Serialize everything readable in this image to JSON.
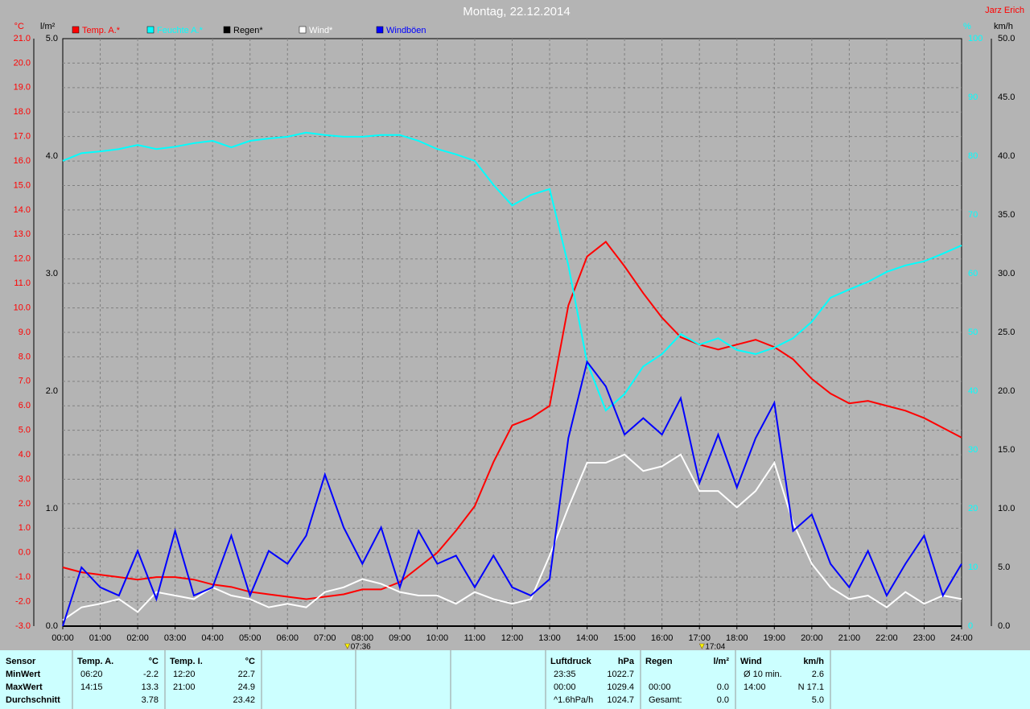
{
  "chart_data": {
    "type": "line",
    "title": "Montag, 22.12.2014",
    "author": "Jarz Erich",
    "units": {
      "y": "°C",
      "y3": "l/m²",
      "y2": "%",
      "y4": "km/h"
    },
    "x": [
      0,
      0.5,
      1,
      1.5,
      2,
      2.5,
      3,
      3.5,
      4,
      4.5,
      5,
      5.5,
      6,
      6.5,
      7,
      7.5,
      8,
      8.5,
      9,
      9.5,
      10,
      10.5,
      11,
      11.5,
      12,
      12.5,
      13,
      13.5,
      14,
      14.5,
      15,
      15.5,
      16,
      16.5,
      17,
      17.5,
      18,
      18.5,
      19,
      19.5,
      20,
      20.5,
      21,
      21.5,
      22,
      22.5,
      23,
      23.5,
      24
    ],
    "xlim": [
      0,
      24
    ],
    "xticks": [
      {
        "value": 0,
        "label": "00:00"
      },
      {
        "value": 1,
        "label": "01:00"
      },
      {
        "value": 2,
        "label": "02:00"
      },
      {
        "value": 3,
        "label": "03:00"
      },
      {
        "value": 4,
        "label": "04:00"
      },
      {
        "value": 5,
        "label": "05:00"
      },
      {
        "value": 6,
        "label": "06:00"
      },
      {
        "value": 7,
        "label": "07:00"
      },
      {
        "value": 8,
        "label": "08:00"
      },
      {
        "value": 9,
        "label": "09:00"
      },
      {
        "value": 10,
        "label": "10:00"
      },
      {
        "value": 11,
        "label": "11:00"
      },
      {
        "value": 12,
        "label": "12:00"
      },
      {
        "value": 13,
        "label": "13:00"
      },
      {
        "value": 14,
        "label": "14:00"
      },
      {
        "value": 15,
        "label": "15:00"
      },
      {
        "value": 16,
        "label": "16:00"
      },
      {
        "value": 17,
        "label": "17:00"
      },
      {
        "value": 18,
        "label": "18:00"
      },
      {
        "value": 19,
        "label": "19:00"
      },
      {
        "value": 20,
        "label": "20:00"
      },
      {
        "value": 21,
        "label": "21:00"
      },
      {
        "value": 22,
        "label": "22:00"
      },
      {
        "value": 23,
        "label": "23:00"
      },
      {
        "value": 24,
        "label": "24:00"
      }
    ],
    "ylim": [
      -3,
      21
    ],
    "yticks": [
      {
        "value": -3,
        "label": "-3.0"
      },
      {
        "value": -2,
        "label": "-2.0"
      },
      {
        "value": -1,
        "label": "-1.0"
      },
      {
        "value": 0,
        "label": "0.0"
      },
      {
        "value": 1,
        "label": "1.0"
      },
      {
        "value": 2,
        "label": "2.0"
      },
      {
        "value": 3,
        "label": "3.0"
      },
      {
        "value": 4,
        "label": "4.0"
      },
      {
        "value": 5,
        "label": "5.0"
      },
      {
        "value": 6,
        "label": "6.0"
      },
      {
        "value": 7,
        "label": "7.0"
      },
      {
        "value": 8,
        "label": "8.0"
      },
      {
        "value": 9,
        "label": "9.0"
      },
      {
        "value": 10,
        "label": "10.0"
      },
      {
        "value": 11,
        "label": "11.0"
      },
      {
        "value": 12,
        "label": "12.0"
      },
      {
        "value": 13,
        "label": "13.0"
      },
      {
        "value": 14,
        "label": "14.0"
      },
      {
        "value": 15,
        "label": "15.0"
      },
      {
        "value": 16,
        "label": "16.0"
      },
      {
        "value": 17,
        "label": "17.0"
      },
      {
        "value": 18,
        "label": "18.0"
      },
      {
        "value": 19,
        "label": "19.0"
      },
      {
        "value": 20,
        "label": "20.0"
      },
      {
        "value": 21,
        "label": "21.0"
      }
    ],
    "y3lim": [
      0,
      5
    ],
    "y3ticks": [
      {
        "value": 0,
        "label": "0.0"
      },
      {
        "value": 1,
        "label": "1.0"
      },
      {
        "value": 2,
        "label": "2.0"
      },
      {
        "value": 3,
        "label": "3.0"
      },
      {
        "value": 4,
        "label": "4.0"
      },
      {
        "value": 5,
        "label": "5.0"
      }
    ],
    "y2lim": [
      0,
      100
    ],
    "y2ticks": [
      0,
      10,
      20,
      30,
      40,
      50,
      60,
      70,
      80,
      90,
      100
    ],
    "y4lim": [
      0,
      50
    ],
    "y4ticks": [
      {
        "value": 0,
        "label": "0.0"
      },
      {
        "value": 5,
        "label": "5.0"
      },
      {
        "value": 10,
        "label": "10.0"
      },
      {
        "value": 15,
        "label": "15.0"
      },
      {
        "value": 20,
        "label": "20.0"
      },
      {
        "value": 25,
        "label": "25.0"
      },
      {
        "value": 30,
        "label": "30.0"
      },
      {
        "value": 35,
        "label": "35.0"
      },
      {
        "value": 40,
        "label": "40.0"
      },
      {
        "value": 45,
        "label": "45.0"
      },
      {
        "value": 50,
        "label": "50.0"
      }
    ],
    "grid": true,
    "series": [
      {
        "name": "Temp. A.*",
        "color": "#ff0000",
        "axis": "y",
        "values": [
          -0.6,
          -0.8,
          -0.9,
          -1.0,
          -1.1,
          -1.0,
          -1.0,
          -1.1,
          -1.3,
          -1.4,
          -1.6,
          -1.7,
          -1.8,
          -1.9,
          -1.8,
          -1.7,
          -1.5,
          -1.5,
          -1.2,
          -0.6,
          0.0,
          0.9,
          1.9,
          3.7,
          5.2,
          5.5,
          6.0,
          10.1,
          12.1,
          12.7,
          11.7,
          10.6,
          9.6,
          8.8,
          8.5,
          8.3,
          8.5,
          8.7,
          8.4,
          7.9,
          7.1,
          6.5,
          6.1,
          6.2,
          6.0,
          5.8,
          5.5,
          5.1,
          4.7
        ]
      },
      {
        "name": "Feuchte A.*",
        "color": "#00ffff",
        "axis": "y2",
        "values": [
          79.2,
          80.5,
          80.8,
          81.2,
          81.9,
          81.2,
          81.6,
          82.2,
          82.6,
          81.5,
          82.6,
          83.0,
          83.3,
          84.0,
          83.6,
          83.3,
          83.3,
          83.6,
          83.6,
          82.6,
          81.2,
          80.3,
          79.2,
          75.1,
          71.6,
          73.4,
          74.4,
          61.4,
          44.9,
          36.7,
          39.5,
          44.2,
          46.3,
          49.7,
          47.9,
          49.0,
          47.0,
          46.3,
          47.4,
          49.0,
          51.8,
          55.9,
          57.3,
          58.6,
          60.3,
          61.4,
          62.1,
          63.4,
          64.8
        ]
      },
      {
        "name": "Regen*",
        "color": "#000000",
        "axis": "y3",
        "values": [
          0,
          0,
          0,
          0,
          0,
          0,
          0,
          0,
          0,
          0,
          0,
          0,
          0,
          0,
          0,
          0,
          0,
          0,
          0,
          0,
          0,
          0,
          0,
          0,
          0,
          0,
          0,
          0,
          0,
          0,
          0,
          0,
          0,
          0,
          0,
          0,
          0,
          0,
          0,
          0,
          0,
          0,
          0,
          0,
          0,
          0,
          0,
          0,
          0
        ]
      },
      {
        "name": "Wind*",
        "color": "#ffffff",
        "axis": "y4",
        "values": [
          0.5,
          1.6,
          1.9,
          2.3,
          1.2,
          2.9,
          2.6,
          2.3,
          3.3,
          2.6,
          2.3,
          1.6,
          1.9,
          1.6,
          2.9,
          3.3,
          4.0,
          3.6,
          2.9,
          2.6,
          2.6,
          1.9,
          2.9,
          2.3,
          1.9,
          2.3,
          6.0,
          10.1,
          13.9,
          13.9,
          14.6,
          13.2,
          13.6,
          14.6,
          11.5,
          11.5,
          10.1,
          11.5,
          13.9,
          8.8,
          5.3,
          3.3,
          2.3,
          2.6,
          1.6,
          2.9,
          1.9,
          2.6,
          2.3
        ]
      },
      {
        "name": "Windböen",
        "color": "#0000ff",
        "axis": "y4",
        "values": [
          0,
          5.0,
          3.3,
          2.6,
          6.4,
          2.3,
          8.1,
          2.6,
          3.3,
          7.7,
          2.6,
          6.4,
          5.3,
          7.7,
          12.9,
          8.4,
          5.3,
          8.4,
          3.3,
          8.1,
          5.3,
          6.0,
          3.3,
          6.0,
          3.3,
          2.6,
          4.0,
          16.0,
          22.5,
          20.4,
          16.3,
          17.7,
          16.3,
          19.4,
          12.2,
          16.3,
          11.8,
          16.0,
          19.0,
          8.1,
          9.5,
          5.3,
          3.3,
          6.4,
          2.6,
          5.3,
          7.7,
          2.6,
          5.3
        ]
      }
    ],
    "annotations": [
      {
        "x": 7.6,
        "label": "07:36"
      },
      {
        "x": 17.0667,
        "label": "17:04"
      }
    ]
  },
  "table": {
    "sensor": {
      "header": "Sensor",
      "rows": [
        "MinWert",
        "MaxWert",
        "Durchschnitt"
      ]
    },
    "blocks": [
      {
        "header": "Temp. A.",
        "unit": "°C",
        "rows": [
          [
            "06:20",
            "-2.2"
          ],
          [
            "14:15",
            "13.3"
          ],
          [
            "3.78"
          ]
        ]
      },
      {
        "header": "Temp. I.",
        "unit": "°C",
        "rows": [
          [
            "12:20",
            "22.7"
          ],
          [
            "21:00",
            "24.9"
          ],
          [
            "23.42"
          ]
        ]
      },
      {
        "header": "Luftdruck",
        "unit": "hPa",
        "rows": [
          [
            "23:35",
            "1022.7"
          ],
          [
            "00:00",
            "1029.4"
          ],
          [
            "^1.6hPa/h",
            "1024.7"
          ]
        ]
      },
      {
        "header": "Regen",
        "unit": "l/m²",
        "rows": [
          [
            "00:00",
            "0.0"
          ],
          [
            "Gesamt:",
            "0.0"
          ]
        ]
      },
      {
        "header": "Wind",
        "unit": "km/h",
        "rows": [
          [
            "Ø 10 min.",
            "2.6"
          ],
          [
            "14:00",
            "N 17.1"
          ],
          [
            "5.0"
          ]
        ]
      }
    ]
  }
}
